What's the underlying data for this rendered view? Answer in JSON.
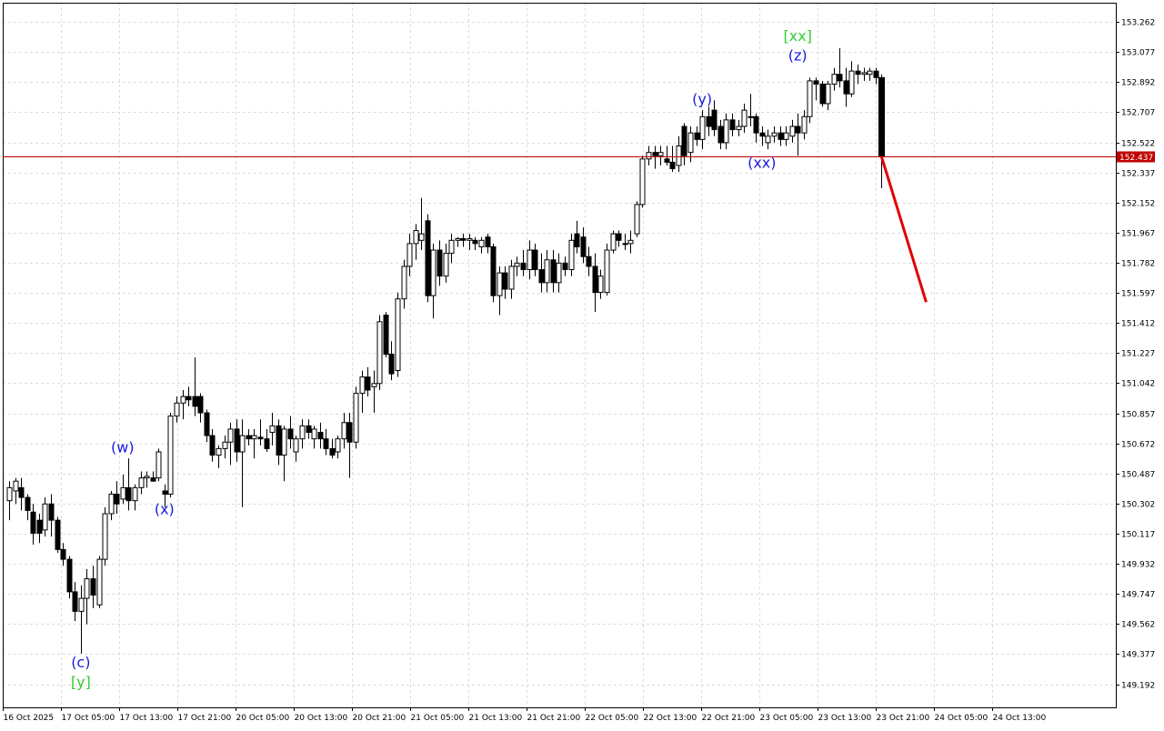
{
  "chart_data": {
    "type": "candlestick",
    "title": "",
    "grid": true,
    "colors": {
      "background": "#ffffff",
      "grid": "#dcdcdc",
      "candle_bull_fill": "#ffffff",
      "candle_bear_fill": "#000000",
      "candle_outline": "#000000",
      "price_line": "#c00000",
      "price_tag_bg": "#c00000",
      "price_tag_text": "#ffffff",
      "forecast": "#e00000",
      "wave_minor": "#1a1adc",
      "wave_major": "#33cc33"
    },
    "ylim": [
      149.05,
      153.38
    ],
    "y_ticks": [
      "153.262",
      "153.077",
      "152.892",
      "152.707",
      "152.522",
      "152.337",
      "152.152",
      "151.967",
      "151.782",
      "151.597",
      "151.412",
      "151.227",
      "151.042",
      "150.857",
      "150.672",
      "150.487",
      "150.302",
      "150.117",
      "149.932",
      "149.747",
      "149.562",
      "149.377",
      "149.192"
    ],
    "x_ticks": [
      "16 Oct 2025",
      "17 Oct 05:00",
      "17 Oct 13:00",
      "17 Oct 21:00",
      "20 Oct 05:00",
      "20 Oct 13:00",
      "20 Oct 21:00",
      "21 Oct 05:00",
      "21 Oct 13:00",
      "21 Oct 21:00",
      "22 Oct 05:00",
      "22 Oct 13:00",
      "22 Oct 21:00",
      "23 Oct 05:00",
      "23 Oct 13:00",
      "23 Oct 21:00",
      "24 Oct 05:00",
      "24 Oct 13:00"
    ],
    "current_price": "152.437",
    "candles": [
      {
        "o": 150.32,
        "h": 150.44,
        "l": 150.2,
        "c": 150.4
      },
      {
        "o": 150.38,
        "h": 150.46,
        "l": 150.3,
        "c": 150.44
      },
      {
        "o": 150.4,
        "h": 150.46,
        "l": 150.26,
        "c": 150.34
      },
      {
        "o": 150.34,
        "h": 150.36,
        "l": 150.2,
        "c": 150.26
      },
      {
        "o": 150.25,
        "h": 150.3,
        "l": 150.05,
        "c": 150.12
      },
      {
        "o": 150.2,
        "h": 150.24,
        "l": 150.06,
        "c": 150.12
      },
      {
        "o": 150.14,
        "h": 150.34,
        "l": 150.1,
        "c": 150.3
      },
      {
        "o": 150.3,
        "h": 150.36,
        "l": 150.1,
        "c": 150.2
      },
      {
        "o": 150.2,
        "h": 150.22,
        "l": 150.0,
        "c": 150.02
      },
      {
        "o": 150.02,
        "h": 150.06,
        "l": 149.92,
        "c": 149.96
      },
      {
        "o": 149.96,
        "h": 149.98,
        "l": 149.72,
        "c": 149.76
      },
      {
        "o": 149.76,
        "h": 149.82,
        "l": 149.58,
        "c": 149.64
      },
      {
        "o": 149.64,
        "h": 149.8,
        "l": 149.38,
        "c": 149.72
      },
      {
        "o": 149.72,
        "h": 149.9,
        "l": 149.56,
        "c": 149.84
      },
      {
        "o": 149.84,
        "h": 149.92,
        "l": 149.66,
        "c": 149.74
      },
      {
        "o": 149.68,
        "h": 149.98,
        "l": 149.66,
        "c": 149.96
      },
      {
        "o": 149.96,
        "h": 150.28,
        "l": 149.92,
        "c": 150.24
      },
      {
        "o": 150.24,
        "h": 150.38,
        "l": 150.2,
        "c": 150.36
      },
      {
        "o": 150.36,
        "h": 150.44,
        "l": 150.24,
        "c": 150.3
      },
      {
        "o": 150.33,
        "h": 150.48,
        "l": 150.3,
        "c": 150.4
      },
      {
        "o": 150.4,
        "h": 150.58,
        "l": 150.26,
        "c": 150.32
      },
      {
        "o": 150.32,
        "h": 150.42,
        "l": 150.26,
        "c": 150.4
      },
      {
        "o": 150.4,
        "h": 150.5,
        "l": 150.36,
        "c": 150.46
      },
      {
        "o": 150.46,
        "h": 150.5,
        "l": 150.4,
        "c": 150.47
      },
      {
        "o": 150.46,
        "h": 150.5,
        "l": 150.44,
        "c": 150.44
      },
      {
        "o": 150.46,
        "h": 150.64,
        "l": 150.44,
        "c": 150.62
      },
      {
        "o": 150.38,
        "h": 150.42,
        "l": 150.28,
        "c": 150.36
      },
      {
        "o": 150.36,
        "h": 150.86,
        "l": 150.34,
        "c": 150.84
      },
      {
        "o": 150.84,
        "h": 150.96,
        "l": 150.8,
        "c": 150.92
      },
      {
        "o": 150.92,
        "h": 151.0,
        "l": 150.82,
        "c": 150.96
      },
      {
        "o": 150.96,
        "h": 151.02,
        "l": 150.9,
        "c": 150.94
      },
      {
        "o": 150.96,
        "h": 151.2,
        "l": 150.84,
        "c": 150.9
      },
      {
        "o": 150.96,
        "h": 150.98,
        "l": 150.8,
        "c": 150.86
      },
      {
        "o": 150.86,
        "h": 150.88,
        "l": 150.68,
        "c": 150.72
      },
      {
        "o": 150.72,
        "h": 150.76,
        "l": 150.56,
        "c": 150.6
      },
      {
        "o": 150.6,
        "h": 150.66,
        "l": 150.52,
        "c": 150.64
      },
      {
        "o": 150.64,
        "h": 150.72,
        "l": 150.58,
        "c": 150.68
      },
      {
        "o": 150.68,
        "h": 150.8,
        "l": 150.54,
        "c": 150.76
      },
      {
        "o": 150.76,
        "h": 150.82,
        "l": 150.56,
        "c": 150.62
      },
      {
        "o": 150.62,
        "h": 150.82,
        "l": 150.28,
        "c": 150.72
      },
      {
        "o": 150.72,
        "h": 150.76,
        "l": 150.66,
        "c": 150.7
      },
      {
        "o": 150.7,
        "h": 150.76,
        "l": 150.58,
        "c": 150.72
      },
      {
        "o": 150.71,
        "h": 150.82,
        "l": 150.66,
        "c": 150.7
      },
      {
        "o": 150.7,
        "h": 150.76,
        "l": 150.62,
        "c": 150.64
      },
      {
        "o": 150.74,
        "h": 150.86,
        "l": 150.66,
        "c": 150.78
      },
      {
        "o": 150.78,
        "h": 150.82,
        "l": 150.54,
        "c": 150.6
      },
      {
        "o": 150.6,
        "h": 150.78,
        "l": 150.44,
        "c": 150.76
      },
      {
        "o": 150.76,
        "h": 150.84,
        "l": 150.64,
        "c": 150.7
      },
      {
        "o": 150.62,
        "h": 150.72,
        "l": 150.56,
        "c": 150.7
      },
      {
        "o": 150.7,
        "h": 150.82,
        "l": 150.64,
        "c": 150.78
      },
      {
        "o": 150.78,
        "h": 150.82,
        "l": 150.7,
        "c": 150.74
      },
      {
        "o": 150.7,
        "h": 150.78,
        "l": 150.64,
        "c": 150.76
      },
      {
        "o": 150.74,
        "h": 150.8,
        "l": 150.64,
        "c": 150.7
      },
      {
        "o": 150.7,
        "h": 150.76,
        "l": 150.6,
        "c": 150.64
      },
      {
        "o": 150.64,
        "h": 150.7,
        "l": 150.58,
        "c": 150.6
      },
      {
        "o": 150.62,
        "h": 150.72,
        "l": 150.58,
        "c": 150.7
      },
      {
        "o": 150.7,
        "h": 150.86,
        "l": 150.64,
        "c": 150.8
      },
      {
        "o": 150.8,
        "h": 150.86,
        "l": 150.46,
        "c": 150.68
      },
      {
        "o": 150.68,
        "h": 151.02,
        "l": 150.64,
        "c": 150.98
      },
      {
        "o": 150.98,
        "h": 151.12,
        "l": 150.86,
        "c": 151.08
      },
      {
        "o": 151.08,
        "h": 151.14,
        "l": 150.96,
        "c": 151.0
      },
      {
        "o": 151.02,
        "h": 151.12,
        "l": 150.86,
        "c": 151.04
      },
      {
        "o": 151.04,
        "h": 151.46,
        "l": 151.0,
        "c": 151.42
      },
      {
        "o": 151.46,
        "h": 151.48,
        "l": 151.2,
        "c": 151.22
      },
      {
        "o": 151.22,
        "h": 151.3,
        "l": 151.06,
        "c": 151.1
      },
      {
        "o": 151.12,
        "h": 151.6,
        "l": 151.08,
        "c": 151.56
      },
      {
        "o": 151.56,
        "h": 151.8,
        "l": 151.5,
        "c": 151.76
      },
      {
        "o": 151.76,
        "h": 151.96,
        "l": 151.7,
        "c": 151.9
      },
      {
        "o": 151.9,
        "h": 152.02,
        "l": 151.8,
        "c": 151.98
      },
      {
        "o": 151.92,
        "h": 152.18,
        "l": 151.86,
        "c": 151.96
      },
      {
        "o": 152.04,
        "h": 152.08,
        "l": 151.54,
        "c": 151.58
      },
      {
        "o": 151.58,
        "h": 151.9,
        "l": 151.44,
        "c": 151.86
      },
      {
        "o": 151.86,
        "h": 151.92,
        "l": 151.64,
        "c": 151.7
      },
      {
        "o": 151.7,
        "h": 151.9,
        "l": 151.66,
        "c": 151.84
      },
      {
        "o": 151.84,
        "h": 151.96,
        "l": 151.78,
        "c": 151.92
      },
      {
        "o": 151.92,
        "h": 151.94,
        "l": 151.88,
        "c": 151.93
      },
      {
        "o": 151.93,
        "h": 151.96,
        "l": 151.88,
        "c": 151.92
      },
      {
        "o": 151.92,
        "h": 151.96,
        "l": 151.86,
        "c": 151.93
      },
      {
        "o": 151.92,
        "h": 151.94,
        "l": 151.86,
        "c": 151.9
      },
      {
        "o": 151.88,
        "h": 151.94,
        "l": 151.84,
        "c": 151.92
      },
      {
        "o": 151.94,
        "h": 151.96,
        "l": 151.84,
        "c": 151.88
      },
      {
        "o": 151.88,
        "h": 151.9,
        "l": 151.54,
        "c": 151.58
      },
      {
        "o": 151.58,
        "h": 151.76,
        "l": 151.46,
        "c": 151.72
      },
      {
        "o": 151.72,
        "h": 151.76,
        "l": 151.56,
        "c": 151.62
      },
      {
        "o": 151.62,
        "h": 151.8,
        "l": 151.56,
        "c": 151.76
      },
      {
        "o": 151.76,
        "h": 151.82,
        "l": 151.7,
        "c": 151.78
      },
      {
        "o": 151.78,
        "h": 151.86,
        "l": 151.7,
        "c": 151.74
      },
      {
        "o": 151.74,
        "h": 151.92,
        "l": 151.68,
        "c": 151.86
      },
      {
        "o": 151.86,
        "h": 151.9,
        "l": 151.7,
        "c": 151.74
      },
      {
        "o": 151.74,
        "h": 151.84,
        "l": 151.6,
        "c": 151.66
      },
      {
        "o": 151.66,
        "h": 151.86,
        "l": 151.6,
        "c": 151.8
      },
      {
        "o": 151.8,
        "h": 151.86,
        "l": 151.6,
        "c": 151.66
      },
      {
        "o": 151.66,
        "h": 151.84,
        "l": 151.6,
        "c": 151.78
      },
      {
        "o": 151.78,
        "h": 151.82,
        "l": 151.7,
        "c": 151.74
      },
      {
        "o": 151.74,
        "h": 151.96,
        "l": 151.7,
        "c": 151.92
      },
      {
        "o": 151.96,
        "h": 152.04,
        "l": 151.84,
        "c": 151.88
      },
      {
        "o": 151.94,
        "h": 152.0,
        "l": 151.78,
        "c": 151.82
      },
      {
        "o": 151.82,
        "h": 151.88,
        "l": 151.7,
        "c": 151.76
      },
      {
        "o": 151.76,
        "h": 151.84,
        "l": 151.48,
        "c": 151.6
      },
      {
        "o": 151.6,
        "h": 151.74,
        "l": 151.56,
        "c": 151.7
      },
      {
        "o": 151.6,
        "h": 151.9,
        "l": 151.58,
        "c": 151.86
      },
      {
        "o": 151.86,
        "h": 151.98,
        "l": 151.84,
        "c": 151.96
      },
      {
        "o": 151.96,
        "h": 151.98,
        "l": 151.88,
        "c": 151.92
      },
      {
        "o": 151.9,
        "h": 151.96,
        "l": 151.86,
        "c": 151.9
      },
      {
        "o": 151.9,
        "h": 151.98,
        "l": 151.84,
        "c": 151.92
      },
      {
        "o": 151.96,
        "h": 152.16,
        "l": 151.94,
        "c": 152.14
      },
      {
        "o": 152.14,
        "h": 152.44,
        "l": 152.12,
        "c": 152.42
      },
      {
        "o": 152.42,
        "h": 152.5,
        "l": 152.38,
        "c": 152.46
      },
      {
        "o": 152.46,
        "h": 152.5,
        "l": 152.36,
        "c": 152.44
      },
      {
        "o": 152.44,
        "h": 152.5,
        "l": 152.38,
        "c": 152.46
      },
      {
        "o": 152.42,
        "h": 152.5,
        "l": 152.38,
        "c": 152.4
      },
      {
        "o": 152.4,
        "h": 152.5,
        "l": 152.34,
        "c": 152.36
      },
      {
        "o": 152.38,
        "h": 152.56,
        "l": 152.34,
        "c": 152.5
      },
      {
        "o": 152.62,
        "h": 152.64,
        "l": 152.38,
        "c": 152.44
      },
      {
        "o": 152.46,
        "h": 152.62,
        "l": 152.4,
        "c": 152.58
      },
      {
        "o": 152.58,
        "h": 152.62,
        "l": 152.5,
        "c": 152.54
      },
      {
        "o": 152.54,
        "h": 152.72,
        "l": 152.48,
        "c": 152.68
      },
      {
        "o": 152.68,
        "h": 152.74,
        "l": 152.56,
        "c": 152.62
      },
      {
        "o": 152.72,
        "h": 152.78,
        "l": 152.56,
        "c": 152.6
      },
      {
        "o": 152.62,
        "h": 152.66,
        "l": 152.48,
        "c": 152.52
      },
      {
        "o": 152.52,
        "h": 152.7,
        "l": 152.48,
        "c": 152.66
      },
      {
        "o": 152.66,
        "h": 152.7,
        "l": 152.56,
        "c": 152.6
      },
      {
        "o": 152.6,
        "h": 152.66,
        "l": 152.56,
        "c": 152.62
      },
      {
        "o": 152.62,
        "h": 152.76,
        "l": 152.58,
        "c": 152.72
      },
      {
        "o": 152.68,
        "h": 152.82,
        "l": 152.62,
        "c": 152.68
      },
      {
        "o": 152.68,
        "h": 152.7,
        "l": 152.52,
        "c": 152.58
      },
      {
        "o": 152.58,
        "h": 152.62,
        "l": 152.5,
        "c": 152.56
      },
      {
        "o": 152.52,
        "h": 152.6,
        "l": 152.48,
        "c": 152.56
      },
      {
        "o": 152.56,
        "h": 152.62,
        "l": 152.52,
        "c": 152.58
      },
      {
        "o": 152.58,
        "h": 152.62,
        "l": 152.5,
        "c": 152.54
      },
      {
        "o": 152.54,
        "h": 152.62,
        "l": 152.5,
        "c": 152.58
      },
      {
        "o": 152.56,
        "h": 152.66,
        "l": 152.52,
        "c": 152.62
      },
      {
        "o": 152.62,
        "h": 152.7,
        "l": 152.44,
        "c": 152.58
      },
      {
        "o": 152.58,
        "h": 152.72,
        "l": 152.54,
        "c": 152.68
      },
      {
        "o": 152.68,
        "h": 152.92,
        "l": 152.64,
        "c": 152.9
      },
      {
        "o": 152.9,
        "h": 152.92,
        "l": 152.78,
        "c": 152.88
      },
      {
        "o": 152.88,
        "h": 152.9,
        "l": 152.74,
        "c": 152.76
      },
      {
        "o": 152.76,
        "h": 152.9,
        "l": 152.72,
        "c": 152.88
      },
      {
        "o": 152.88,
        "h": 152.98,
        "l": 152.84,
        "c": 152.94
      },
      {
        "o": 152.94,
        "h": 153.1,
        "l": 152.86,
        "c": 152.9
      },
      {
        "o": 152.9,
        "h": 152.98,
        "l": 152.74,
        "c": 152.82
      },
      {
        "o": 152.82,
        "h": 153.02,
        "l": 152.8,
        "c": 152.96
      },
      {
        "o": 152.96,
        "h": 153.0,
        "l": 152.88,
        "c": 152.94
      },
      {
        "o": 152.94,
        "h": 152.98,
        "l": 152.9,
        "c": 152.95
      },
      {
        "o": 152.94,
        "h": 152.98,
        "l": 152.9,
        "c": 152.96
      },
      {
        "o": 152.96,
        "h": 152.98,
        "l": 152.88,
        "c": 152.92
      },
      {
        "o": 152.92,
        "h": 152.94,
        "l": 152.24,
        "c": 152.437
      }
    ],
    "forecast": {
      "from_price": 152.437,
      "to_price": 151.54,
      "to_candle_offset": 7.5
    },
    "wave_labels": [
      {
        "text": "(c)",
        "candle": 12,
        "price": 149.33,
        "color": "wave_minor"
      },
      {
        "text": "[y]",
        "candle": 12,
        "price": 149.21,
        "color": "wave_major"
      },
      {
        "text": "(w)",
        "candle": 19,
        "price": 150.65,
        "color": "wave_minor"
      },
      {
        "text": "(x)",
        "candle": 26,
        "price": 150.27,
        "color": "wave_minor"
      },
      {
        "text": "(y)",
        "candle": 116,
        "price": 152.79,
        "color": "wave_minor"
      },
      {
        "text": "(xx)",
        "candle": 126,
        "price": 152.4,
        "color": "wave_minor"
      },
      {
        "text": "(z)",
        "candle": 132,
        "price": 153.06,
        "color": "wave_minor"
      },
      {
        "text": "[xx]",
        "candle": 132,
        "price": 153.18,
        "color": "wave_major"
      }
    ]
  }
}
